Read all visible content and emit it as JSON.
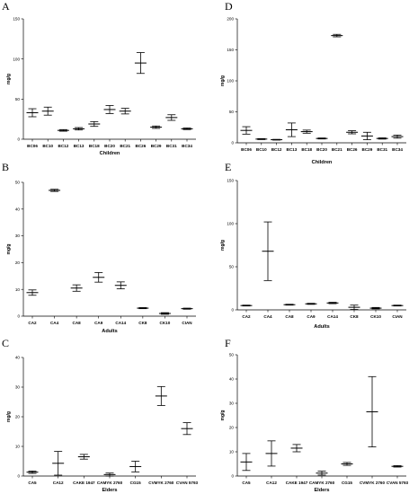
{
  "chart_data": [
    {
      "panel": "A",
      "type": "scatter",
      "ylabel": "mg/g",
      "xlabel": "Children",
      "ylim": [
        0,
        150
      ],
      "yticks": [
        0,
        50,
        100,
        150
      ],
      "categories": [
        "BC06",
        "BC10",
        "BC12",
        "BC13",
        "BC18",
        "BC20",
        "BC21",
        "BC26",
        "BC29",
        "BC31",
        "BC34"
      ],
      "mean": [
        33,
        35,
        11,
        13,
        19,
        37,
        35,
        95,
        15,
        27,
        13
      ],
      "error": [
        5,
        5,
        1,
        1.5,
        3,
        5,
        3.5,
        13,
        1.5,
        3.5,
        1
      ]
    },
    {
      "panel": "D",
      "type": "scatter",
      "ylabel": "mg/g",
      "xlabel": "Children",
      "ylim": [
        0,
        200
      ],
      "yticks": [
        0,
        50,
        100,
        150,
        200
      ],
      "categories": [
        "BC06",
        "BC10",
        "BC12",
        "BC13",
        "BC18",
        "BC20",
        "BC21",
        "BC26",
        "BC29",
        "BC31",
        "BC34"
      ],
      "mean": [
        20,
        6,
        5,
        21,
        18,
        7,
        173,
        17,
        11,
        7,
        10
      ],
      "error": [
        6,
        0.8,
        0.6,
        11,
        2.5,
        0.8,
        2,
        2.5,
        6,
        1,
        2.5
      ]
    },
    {
      "panel": "B",
      "type": "scatter",
      "ylabel": "mg/g",
      "xlabel": "Adults",
      "ylim": [
        0,
        50
      ],
      "yticks": [
        0,
        10,
        20,
        30,
        40,
        50
      ],
      "categories": [
        "CA2",
        "CA4",
        "CA8",
        "CA9",
        "CA14",
        "CK8",
        "CK10",
        "CIAN"
      ],
      "mean": [
        8.8,
        47,
        10.5,
        14.5,
        11.5,
        3,
        1,
        2.8
      ],
      "error": [
        1,
        0.4,
        1.2,
        1.8,
        1.3,
        0.2,
        0.3,
        0.2
      ]
    },
    {
      "panel": "E",
      "type": "scatter",
      "ylabel": "mg/g",
      "xlabel": "Adults",
      "ylim": [
        0,
        150
      ],
      "yticks": [
        0,
        50,
        100,
        150
      ],
      "categories": [
        "CA2",
        "CA4",
        "CA8",
        "CA9",
        "CA14",
        "CK8",
        "CK10",
        "CIAN"
      ],
      "mean": [
        5,
        68,
        6,
        7,
        8,
        3,
        2,
        5
      ],
      "error": [
        0.5,
        34,
        0.5,
        0.6,
        0.8,
        2.5,
        0.8,
        0.5
      ]
    },
    {
      "panel": "C",
      "type": "scatter",
      "ylabel": "mg/g",
      "xlabel": "Elders",
      "ylim": [
        0,
        40
      ],
      "yticks": [
        0,
        10,
        20,
        30,
        40
      ],
      "categories": [
        "CA5",
        "CA12",
        "CAKE 1947",
        "CAMYK 2760",
        "CG15",
        "CVMYK 2760",
        "CVAN 5793"
      ],
      "mean": [
        1.3,
        4.3,
        6.5,
        0.5,
        3.2,
        27,
        16
      ],
      "error": [
        0.4,
        4,
        0.8,
        0.5,
        1.8,
        3.2,
        2
      ]
    },
    {
      "panel": "F",
      "type": "scatter",
      "ylabel": "mg/g",
      "xlabel": "Elders",
      "ylim": [
        0,
        50
      ],
      "yticks": [
        0,
        10,
        20,
        30,
        40,
        50
      ],
      "categories": [
        "CA5",
        "CA12",
        "CAKE 1947",
        "CAMYK 2760",
        "CG15",
        "CVMYK 2760",
        "CVAN 5793"
      ],
      "mean": [
        5.8,
        9.3,
        11.5,
        1.2,
        5,
        26.5,
        4
      ],
      "error": [
        3.5,
        5.2,
        1.5,
        0.8,
        0.6,
        14.5,
        0.3
      ]
    }
  ]
}
